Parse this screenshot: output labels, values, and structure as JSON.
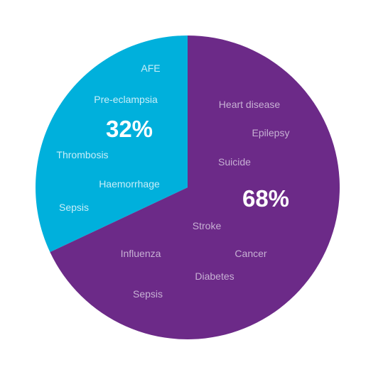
{
  "chart_data": {
    "type": "pie",
    "slices": [
      {
        "label": "32%",
        "value": 32,
        "color": "#00b0dc",
        "text_color": "#c8eef9",
        "causes": [
          "AFE",
          "Pre-eclampsia",
          "Thrombosis",
          "Haemorrhage",
          "Sepsis"
        ]
      },
      {
        "label": "68%",
        "value": 68,
        "color": "#6c2a88",
        "text_color": "#c7b0d4",
        "causes": [
          "Heart disease",
          "Epilepsy",
          "Suicide",
          "Stroke",
          "Cancer",
          "Influenza",
          "Diabetes",
          "Sepsis"
        ]
      }
    ],
    "legend": "none"
  }
}
